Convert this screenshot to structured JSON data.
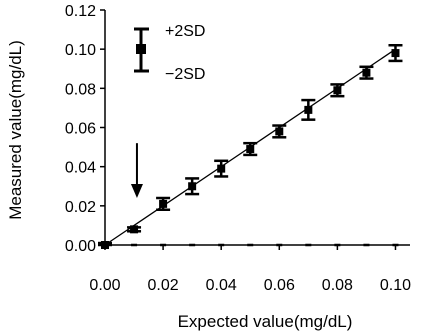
{
  "chart_data": {
    "type": "scatter",
    "title": "",
    "xlabel": "Expected value(mg/dL)",
    "ylabel": "Measured value(mg/dL)",
    "xlim": [
      0.0,
      0.105
    ],
    "ylim": [
      0.0,
      0.12
    ],
    "x_ticks": [
      "0.00",
      "0.02",
      "0.04",
      "0.06",
      "0.08",
      "0.10"
    ],
    "y_ticks": [
      "0.00",
      "0.02",
      "0.04",
      "0.06",
      "0.08",
      "0.10",
      "0.12"
    ],
    "grid": false,
    "legend": {
      "placement": "top-left",
      "upper_label": "+2SD",
      "lower_label": "−2SD"
    },
    "series": [
      {
        "x": [
          0.0,
          0.01,
          0.02,
          0.03,
          0.04,
          0.05,
          0.06,
          0.07,
          0.08,
          0.09,
          0.1
        ],
        "y": [
          0.0,
          0.008,
          0.021,
          0.03,
          0.039,
          0.049,
          0.058,
          0.069,
          0.079,
          0.088,
          0.098
        ],
        "sd2": [
          0.001,
          0.001,
          0.003,
          0.004,
          0.004,
          0.003,
          0.003,
          0.005,
          0.003,
          0.003,
          0.004
        ]
      }
    ],
    "fit_line": {
      "x": [
        0.0,
        0.1
      ],
      "y": [
        0.0,
        0.1
      ]
    },
    "annotation": {
      "type": "arrow",
      "x": 0.011,
      "y_from": 0.052,
      "y_to": 0.024
    }
  }
}
